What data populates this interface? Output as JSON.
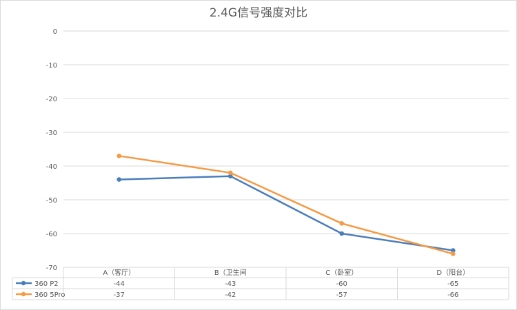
{
  "chart_data": {
    "type": "line",
    "title": "2.4G信号强度对比",
    "categories": [
      "A（客厅）",
      "B（卫生间",
      "C（卧室）",
      "D（阳台）"
    ],
    "series": [
      {
        "name": "360 P2",
        "values": [
          -44,
          -43,
          -60,
          -65
        ],
        "color": "#4a7ebb"
      },
      {
        "name": "360 5Pro",
        "values": [
          -37,
          -42,
          -57,
          -66
        ],
        "color": "#f59a45"
      }
    ],
    "ylim": [
      -70,
      0
    ],
    "yticks": [
      0,
      -10,
      -20,
      -30,
      -40,
      -50,
      -60,
      -70
    ],
    "grid": true,
    "legend": "data-table",
    "data_table": true,
    "table_display": [
      [
        "-44",
        "-43",
        "-60",
        "-65"
      ],
      [
        "-37",
        "-42",
        "-57",
        "-66"
      ]
    ]
  }
}
